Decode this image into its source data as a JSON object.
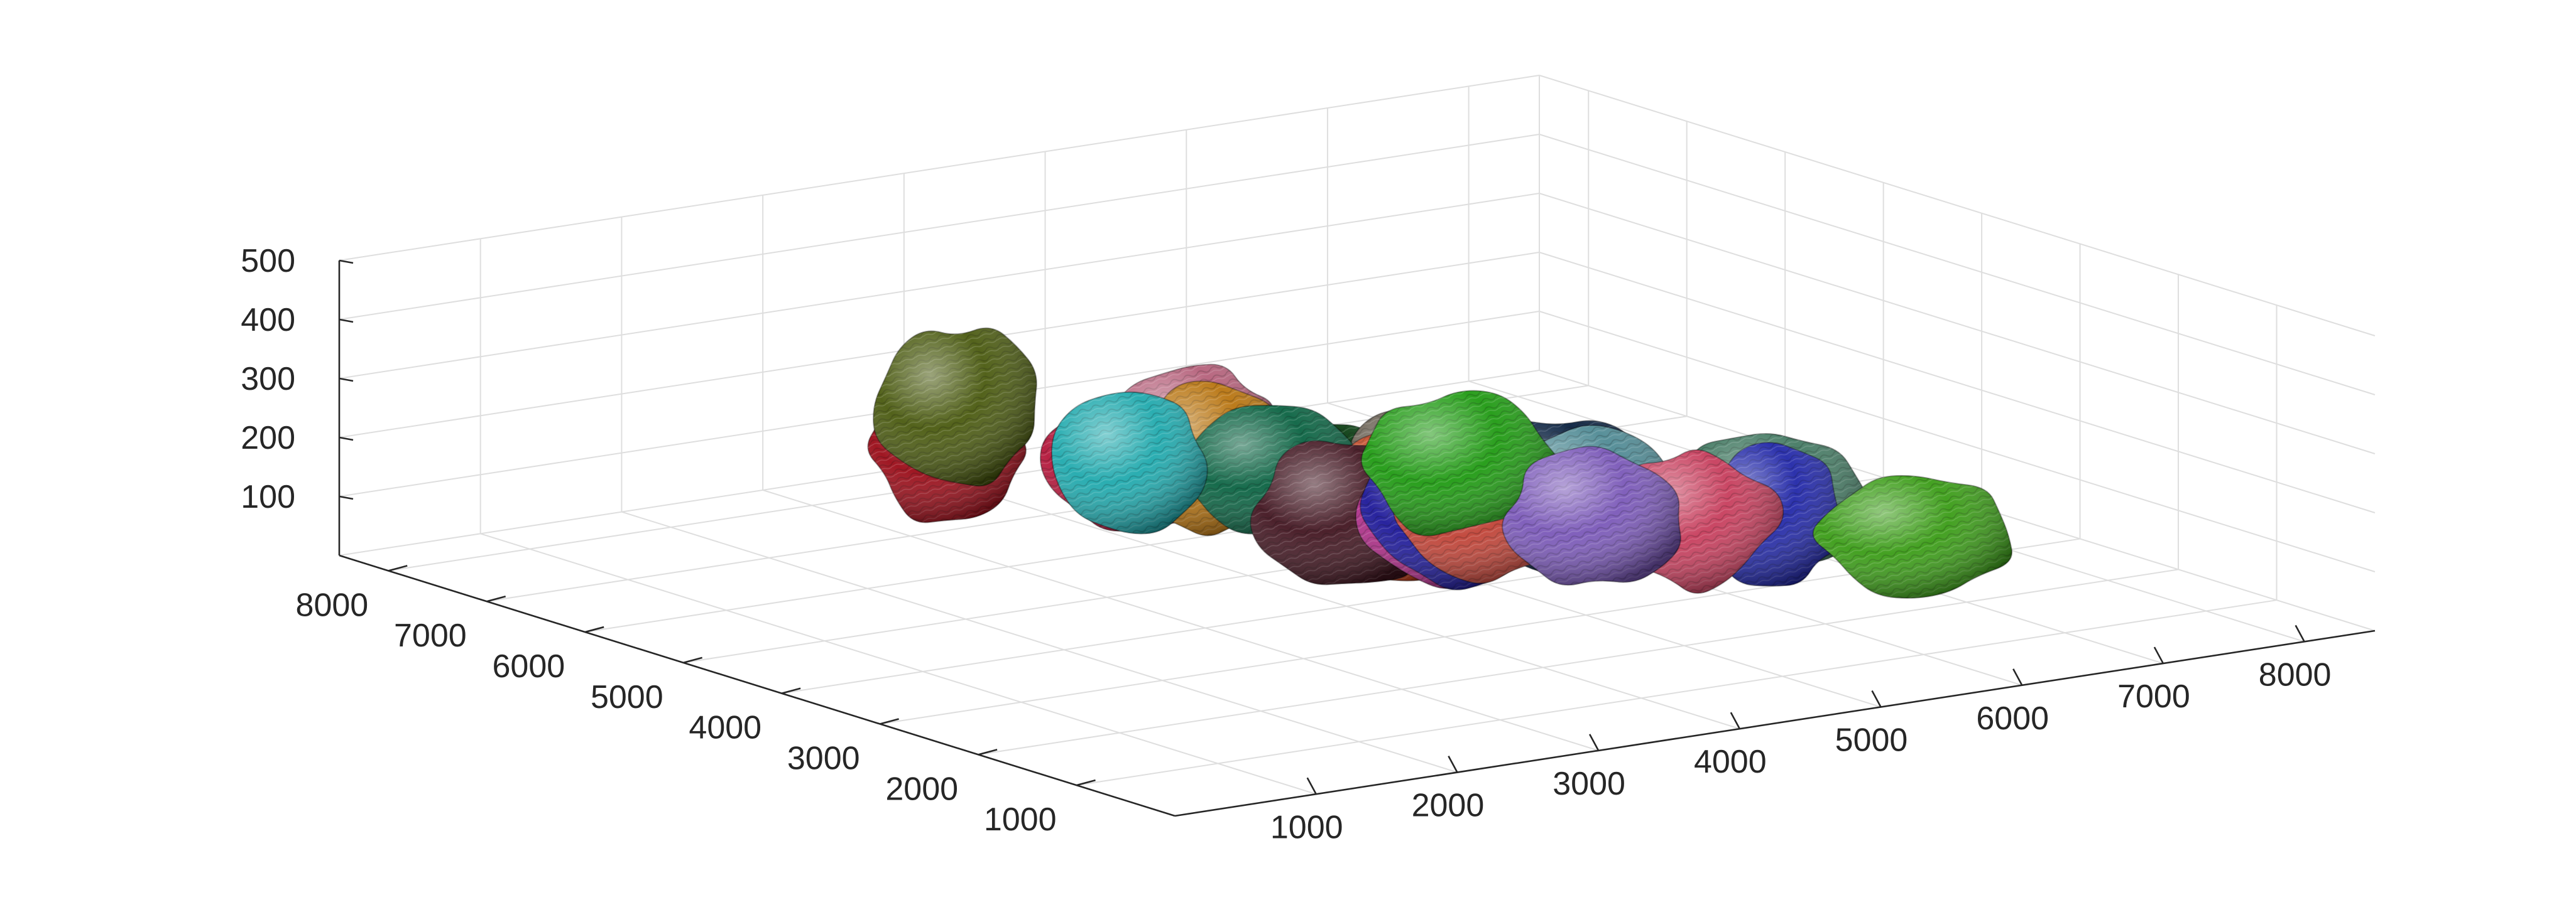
{
  "chart_data": {
    "type": "scatter",
    "title": "",
    "xlabel": "",
    "ylabel": "",
    "zlabel": "",
    "grid": true,
    "view": "3d",
    "z_ticks": [
      100,
      200,
      300,
      400,
      500
    ],
    "x_ticks": [
      1000,
      2000,
      3000,
      4000,
      5000,
      6000,
      7000,
      8000
    ],
    "y_ticks": [
      1000,
      2000,
      3000,
      4000,
      5000,
      6000,
      7000,
      8000
    ],
    "x_ticks_labels": [
      "1000",
      "2000",
      "3000",
      "4000",
      "5000",
      "6000",
      "7000",
      "8000"
    ],
    "y_ticks_labels": [
      "1000",
      "2000",
      "3000",
      "4000",
      "5000",
      "6000",
      "7000",
      "8000"
    ],
    "z_ticks_labels": [
      "100",
      "200",
      "300",
      "400",
      "500"
    ],
    "xlim": [
      0,
      8500
    ],
    "ylim": [
      0,
      8500
    ],
    "zlim": [
      0,
      500
    ],
    "particles": [
      {
        "x": 1800,
        "y": 4800,
        "z": 380,
        "color": "#4a5a0f"
      },
      {
        "x": 2200,
        "y": 3600,
        "z": 330,
        "color": "#1fa9ad"
      },
      {
        "x": 3200,
        "y": 1700,
        "z": 390,
        "color": "#1f9a12"
      },
      {
        "x": 3900,
        "y": 1300,
        "z": 290,
        "color": "#7a58b8"
      },
      {
        "x": 3800,
        "y": 2300,
        "z": 250,
        "color": "#c04236"
      },
      {
        "x": 4000,
        "y": 3000,
        "z": 220,
        "color": "#b02a88"
      },
      {
        "x": 3300,
        "y": 4400,
        "z": 250,
        "color": "#b8740f"
      },
      {
        "x": 2700,
        "y": 6200,
        "z": 200,
        "color": "#9a0b17"
      },
      {
        "x": 3400,
        "y": 5200,
        "z": 200,
        "color": "#b3163a"
      },
      {
        "x": 3700,
        "y": 4300,
        "z": 220,
        "color": "#0a6342"
      },
      {
        "x": 3500,
        "y": 3300,
        "z": 210,
        "color": "#421520"
      },
      {
        "x": 3900,
        "y": 2800,
        "z": 230,
        "color": "#1d1899"
      },
      {
        "x": 4800,
        "y": 1600,
        "z": 240,
        "color": "#c73d5c"
      },
      {
        "x": 5400,
        "y": 1700,
        "z": 220,
        "color": "#2127a8"
      },
      {
        "x": 5800,
        "y": 800,
        "z": 220,
        "color": "#3a9c16"
      },
      {
        "x": 5000,
        "y": 3000,
        "z": 190,
        "color": "#4f8a94"
      },
      {
        "x": 4500,
        "y": 4200,
        "z": 130,
        "color": "#c23d17"
      },
      {
        "x": 4700,
        "y": 5200,
        "z": 110,
        "color": "#063a0e"
      },
      {
        "x": 4300,
        "y": 6000,
        "z": 180,
        "color": "#b5607a"
      },
      {
        "x": 5100,
        "y": 4900,
        "z": 130,
        "color": "#6e6558"
      },
      {
        "x": 5700,
        "y": 4300,
        "z": 110,
        "color": "#08203f"
      },
      {
        "x": 6300,
        "y": 3000,
        "z": 140,
        "color": "#447a63"
      }
    ]
  }
}
